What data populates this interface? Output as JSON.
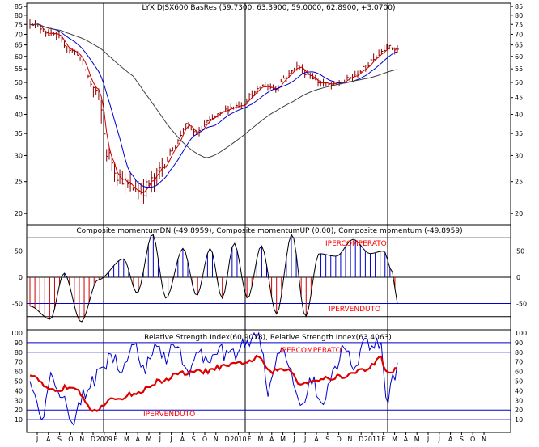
{
  "chart_data": [
    {
      "type": "line",
      "panel": "price",
      "title": "LYX DJSX600 BasRes (59.7300, 63.3900, 59.0000, 62.8900, +3.0700)",
      "scale": "log",
      "ylim": [
        18.5,
        87
      ],
      "yticks": [
        20,
        25,
        30,
        35,
        40,
        45,
        50,
        55,
        60,
        65,
        70,
        75,
        80,
        85
      ],
      "close_anchors": [
        [
          0,
          76
        ],
        [
          2,
          70
        ],
        [
          4,
          62
        ],
        [
          6,
          47
        ],
        [
          7,
          30
        ],
        [
          8,
          26
        ],
        [
          9,
          24
        ],
        [
          10,
          23.5
        ],
        [
          11,
          25
        ],
        [
          12,
          28
        ],
        [
          13,
          32
        ],
        [
          14,
          37
        ],
        [
          15,
          35
        ],
        [
          16,
          38
        ],
        [
          17,
          40
        ],
        [
          18,
          42
        ],
        [
          19,
          43
        ],
        [
          20,
          46
        ],
        [
          21,
          49
        ],
        [
          22,
          48
        ],
        [
          23,
          52
        ],
        [
          24,
          56
        ],
        [
          25,
          53
        ],
        [
          26,
          50
        ],
        [
          27,
          49
        ],
        [
          28,
          50
        ],
        [
          29,
          52
        ],
        [
          30,
          55
        ],
        [
          31,
          60
        ],
        [
          32,
          64
        ],
        [
          33,
          62.9
        ]
      ],
      "series": [
        {
          "kind": "ohlc",
          "color": "#8b0000"
        },
        {
          "kind": "ma",
          "window": 3,
          "color": "#cc0000"
        },
        {
          "kind": "ma",
          "window": 10,
          "color": "#0000cc"
        },
        {
          "kind": "ma",
          "window": 40,
          "color": "#404040"
        }
      ]
    },
    {
      "type": "area",
      "panel": "momentum",
      "title": "Composite momentumDN (-49.8959), Composite momentumUP (0.00), Composite momentum (-49.8959)",
      "ylim": [
        -100,
        100
      ],
      "yticks": [
        50,
        0,
        -50
      ],
      "overbought": 50,
      "oversold": -50,
      "labels": {
        "overbought": "IPERCOMPERATO",
        "oversold": "IPERVENDUTO"
      },
      "anchors": [
        [
          0,
          -55
        ],
        [
          1.2,
          -80
        ],
        [
          2.0,
          8
        ],
        [
          3.0,
          -85
        ],
        [
          4.0,
          -5
        ],
        [
          5.5,
          35
        ],
        [
          6.3,
          -30
        ],
        [
          7.2,
          82
        ],
        [
          8.0,
          -40
        ],
        [
          9.0,
          55
        ],
        [
          9.8,
          -35
        ],
        [
          10.6,
          55
        ],
        [
          11.3,
          -40
        ],
        [
          12.0,
          65
        ],
        [
          12.8,
          -40
        ],
        [
          13.6,
          60
        ],
        [
          14.5,
          -70
        ],
        [
          15.4,
          82
        ],
        [
          16.2,
          -75
        ],
        [
          17.0,
          45
        ],
        [
          18.0,
          40
        ],
        [
          19.0,
          72
        ],
        [
          20.0,
          45
        ],
        [
          20.8,
          50
        ],
        [
          21.3,
          10
        ],
        [
          21.6,
          -50
        ]
      ]
    },
    {
      "type": "line",
      "panel": "rsi",
      "title": "Relative Strength Index(60.9078), Relative Strength Index(63.4063)",
      "ylim": [
        0,
        100
      ],
      "yticks": [
        10,
        20,
        30,
        40,
        50,
        60,
        70,
        80,
        90,
        100
      ],
      "lines": [
        10,
        20,
        80,
        90
      ],
      "labels": {
        "overbought": "IPERCOMPERATO",
        "oversold": "IPERVENDUTO"
      },
      "series": [
        {
          "kind": "rsi-short",
          "color": "#0000cc",
          "last": 63.4063
        },
        {
          "kind": "rsi-long",
          "color": "#dd0000",
          "last": 60.9078
        }
      ]
    }
  ],
  "x_axis": {
    "labels": [
      "J",
      "A",
      "S",
      "O",
      "N",
      "D",
      "2009",
      "F",
      "M",
      "A",
      "M",
      "J",
      "J",
      "A",
      "S",
      "O",
      "N",
      "D",
      "2010",
      "F",
      "M",
      "A",
      "M",
      "J",
      "J",
      "A",
      "S",
      "O",
      "N",
      "D",
      "2011",
      "F",
      "M",
      "A",
      "M",
      "J",
      "J",
      "A",
      "S",
      "O",
      "N"
    ],
    "year_markers": [
      "2009",
      "2010",
      "2011"
    ]
  }
}
